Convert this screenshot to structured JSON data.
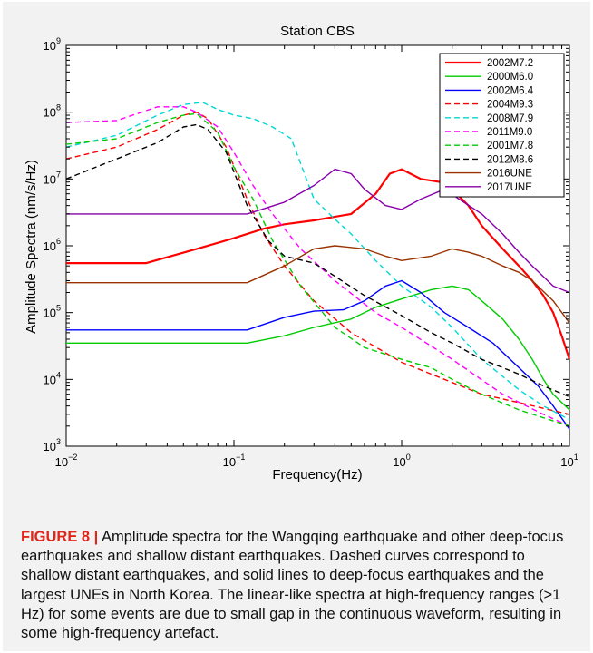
{
  "chart_data": {
    "type": "line",
    "title": "Station CBS",
    "xlabel": "Frequency(Hz)",
    "ylabel": "Amplitude Spectra (nm/s/Hz)",
    "x_scale": "log",
    "y_scale": "log",
    "xlim": [
      0.01,
      10
    ],
    "ylim": [
      1000,
      1000000000
    ],
    "x_ticks": [
      {
        "value": 0.01,
        "base": "10",
        "exp": "−2"
      },
      {
        "value": 0.1,
        "base": "10",
        "exp": "−1"
      },
      {
        "value": 1,
        "base": "10",
        "exp": "0"
      },
      {
        "value": 10,
        "base": "10",
        "exp": "1"
      }
    ],
    "y_ticks": [
      {
        "value": 1000,
        "base": "10",
        "exp": "3"
      },
      {
        "value": 10000,
        "base": "10",
        "exp": "4"
      },
      {
        "value": 100000,
        "base": "10",
        "exp": "5"
      },
      {
        "value": 1000000,
        "base": "10",
        "exp": "6"
      },
      {
        "value": 10000000,
        "base": "10",
        "exp": "7"
      },
      {
        "value": 100000000,
        "base": "10",
        "exp": "8"
      },
      {
        "value": 1000000000,
        "base": "10",
        "exp": "9"
      }
    ],
    "grid": false,
    "legend_position": "top-right",
    "series": [
      {
        "name": "2002M7.2",
        "color": "#ff0000",
        "dash": "solid",
        "width": 2.2,
        "points": [
          [
            0.01,
            550000
          ],
          [
            0.03,
            550000
          ],
          [
            0.06,
            900000
          ],
          [
            0.1,
            1300000
          ],
          [
            0.15,
            1800000
          ],
          [
            0.2,
            2100000
          ],
          [
            0.3,
            2400000
          ],
          [
            0.5,
            3000000
          ],
          [
            0.7,
            6000000
          ],
          [
            0.85,
            12000000
          ],
          [
            1.0,
            14000000
          ],
          [
            1.3,
            10000000
          ],
          [
            1.7,
            9000000
          ],
          [
            2.0,
            7000000
          ],
          [
            2.5,
            4000000
          ],
          [
            3.0,
            2000000
          ],
          [
            4.0,
            900000
          ],
          [
            5.0,
            500000
          ],
          [
            6.0,
            300000
          ],
          [
            7.0,
            180000
          ],
          [
            8.0,
            100000
          ],
          [
            9.0,
            45000
          ],
          [
            10,
            20000
          ]
        ]
      },
      {
        "name": "2000M6.0",
        "color": "#00cc00",
        "dash": "solid",
        "width": 1.4,
        "points": [
          [
            0.01,
            35000
          ],
          [
            0.12,
            35000
          ],
          [
            0.2,
            45000
          ],
          [
            0.3,
            60000
          ],
          [
            0.5,
            80000
          ],
          [
            0.7,
            120000
          ],
          [
            1.0,
            160000
          ],
          [
            1.5,
            220000
          ],
          [
            2.0,
            250000
          ],
          [
            2.5,
            220000
          ],
          [
            3.0,
            150000
          ],
          [
            4.0,
            80000
          ],
          [
            5.0,
            40000
          ],
          [
            6.0,
            20000
          ],
          [
            7.0,
            10000
          ],
          [
            8.0,
            6000
          ],
          [
            10,
            3500
          ]
        ]
      },
      {
        "name": "2002M6.4",
        "color": "#0000ff",
        "dash": "solid",
        "width": 1.4,
        "points": [
          [
            0.01,
            55000
          ],
          [
            0.12,
            55000
          ],
          [
            0.2,
            85000
          ],
          [
            0.3,
            105000
          ],
          [
            0.45,
            110000
          ],
          [
            0.6,
            150000
          ],
          [
            0.8,
            250000
          ],
          [
            1.0,
            300000
          ],
          [
            1.3,
            200000
          ],
          [
            1.8,
            100000
          ],
          [
            2.5,
            60000
          ],
          [
            3.5,
            35000
          ],
          [
            5.0,
            15000
          ],
          [
            6.5,
            8000
          ],
          [
            8.0,
            4000
          ],
          [
            10,
            1800
          ]
        ]
      },
      {
        "name": "2004M9.3",
        "color": "#ff0000",
        "dash": "dash",
        "width": 1.4,
        "points": [
          [
            0.01,
            20000000
          ],
          [
            0.02,
            30000000
          ],
          [
            0.035,
            55000000
          ],
          [
            0.05,
            90000000
          ],
          [
            0.06,
            100000000
          ],
          [
            0.07,
            80000000
          ],
          [
            0.09,
            30000000
          ],
          [
            0.12,
            5000000
          ],
          [
            0.15,
            1500000
          ],
          [
            0.2,
            500000
          ],
          [
            0.3,
            150000
          ],
          [
            0.5,
            50000
          ],
          [
            0.8,
            25000
          ],
          [
            1.0,
            18000
          ],
          [
            2.0,
            9000
          ],
          [
            3.0,
            6000
          ],
          [
            5.0,
            4500
          ],
          [
            10,
            3000
          ]
        ]
      },
      {
        "name": "2008M7.9",
        "color": "#00d8d8",
        "dash": "dash",
        "width": 1.4,
        "points": [
          [
            0.01,
            30000000
          ],
          [
            0.02,
            45000000
          ],
          [
            0.035,
            90000000
          ],
          [
            0.05,
            130000000
          ],
          [
            0.065,
            140000000
          ],
          [
            0.08,
            110000000
          ],
          [
            0.1,
            90000000
          ],
          [
            0.13,
            80000000
          ],
          [
            0.17,
            60000000
          ],
          [
            0.22,
            40000000
          ],
          [
            0.3,
            5000000
          ],
          [
            0.4,
            2500000
          ],
          [
            0.5,
            1500000
          ],
          [
            0.7,
            600000
          ],
          [
            1.0,
            250000
          ],
          [
            1.5,
            120000
          ],
          [
            2.0,
            60000
          ],
          [
            3.0,
            20000
          ],
          [
            5.0,
            7000
          ],
          [
            7.0,
            4000
          ],
          [
            10,
            2500
          ]
        ]
      },
      {
        "name": "2011M9.0",
        "color": "#ff00ff",
        "dash": "dash",
        "width": 1.4,
        "points": [
          [
            0.01,
            70000000
          ],
          [
            0.02,
            75000000
          ],
          [
            0.035,
            120000000
          ],
          [
            0.05,
            120000000
          ],
          [
            0.06,
            100000000
          ],
          [
            0.08,
            60000000
          ],
          [
            0.1,
            25000000
          ],
          [
            0.13,
            8000000
          ],
          [
            0.17,
            3000000
          ],
          [
            0.25,
            900000
          ],
          [
            0.4,
            300000
          ],
          [
            0.7,
            100000
          ],
          [
            1.0,
            60000
          ],
          [
            2.0,
            20000
          ],
          [
            4.0,
            6000
          ],
          [
            7.0,
            3000
          ],
          [
            10,
            2000
          ]
        ]
      },
      {
        "name": "2001M7.8",
        "color": "#00cc00",
        "dash": "dash",
        "width": 1.4,
        "points": [
          [
            0.01,
            33000000
          ],
          [
            0.02,
            40000000
          ],
          [
            0.035,
            70000000
          ],
          [
            0.05,
            90000000
          ],
          [
            0.06,
            95000000
          ],
          [
            0.08,
            50000000
          ],
          [
            0.1,
            15000000
          ],
          [
            0.13,
            5000000
          ],
          [
            0.17,
            1200000
          ],
          [
            0.25,
            250000
          ],
          [
            0.4,
            60000
          ],
          [
            0.6,
            30000
          ],
          [
            1.0,
            20000
          ],
          [
            1.5,
            15000
          ],
          [
            2.0,
            10000
          ],
          [
            3.0,
            6000
          ],
          [
            5.0,
            3500
          ],
          [
            10,
            2000
          ]
        ]
      },
      {
        "name": "2012M8.6",
        "color": "#000000",
        "dash": "dash",
        "width": 1.4,
        "points": [
          [
            0.01,
            10000000
          ],
          [
            0.02,
            20000000
          ],
          [
            0.035,
            35000000
          ],
          [
            0.05,
            60000000
          ],
          [
            0.06,
            65000000
          ],
          [
            0.07,
            55000000
          ],
          [
            0.09,
            25000000
          ],
          [
            0.12,
            4000000
          ],
          [
            0.16,
            1200000
          ],
          [
            0.2,
            700000
          ],
          [
            0.3,
            550000
          ],
          [
            0.4,
            350000
          ],
          [
            0.6,
            180000
          ],
          [
            1.0,
            90000
          ],
          [
            1.5,
            50000
          ],
          [
            2.0,
            35000
          ],
          [
            3.0,
            20000
          ],
          [
            5.0,
            12000
          ],
          [
            7.0,
            8000
          ],
          [
            10,
            5500
          ]
        ]
      },
      {
        "name": "2016UNE",
        "color": "#993300",
        "dash": "solid",
        "width": 1.4,
        "points": [
          [
            0.01,
            280000
          ],
          [
            0.12,
            280000
          ],
          [
            0.2,
            500000
          ],
          [
            0.3,
            900000
          ],
          [
            0.4,
            1000000
          ],
          [
            0.6,
            900000
          ],
          [
            0.8,
            700000
          ],
          [
            1.0,
            600000
          ],
          [
            1.5,
            700000
          ],
          [
            2.0,
            900000
          ],
          [
            2.5,
            800000
          ],
          [
            3.0,
            700000
          ],
          [
            4.0,
            500000
          ],
          [
            5.0,
            400000
          ],
          [
            6.0,
            300000
          ],
          [
            8.0,
            150000
          ],
          [
            10,
            70000
          ]
        ]
      },
      {
        "name": "2017UNE",
        "color": "#8800aa",
        "dash": "solid",
        "width": 1.4,
        "points": [
          [
            0.01,
            3000000
          ],
          [
            0.12,
            3000000
          ],
          [
            0.2,
            4500000
          ],
          [
            0.3,
            8000000
          ],
          [
            0.4,
            14000000
          ],
          [
            0.5,
            12000000
          ],
          [
            0.6,
            7000000
          ],
          [
            0.8,
            4000000
          ],
          [
            1.0,
            3500000
          ],
          [
            1.3,
            5000000
          ],
          [
            1.8,
            7000000
          ],
          [
            2.2,
            5000000
          ],
          [
            3.0,
            3000000
          ],
          [
            4.0,
            1500000
          ],
          [
            5.0,
            800000
          ],
          [
            6.0,
            500000
          ],
          [
            8.0,
            250000
          ],
          [
            10,
            200000
          ]
        ]
      }
    ]
  },
  "caption": {
    "label": "FIGURE 8 |",
    "text": "Amplitude spectra for the Wangqing earthquake and other deep-focus earthquakes and shallow distant earthquakes. Dashed curves correspond to shallow distant earthquakes, and solid lines to deep-focus earthquakes and the largest UNEs in North Korea. The linear-like spectra at high-frequency ranges (>1 Hz) for some events are due to small gap in the continuous waveform, resulting in some high-frequency artefact."
  }
}
